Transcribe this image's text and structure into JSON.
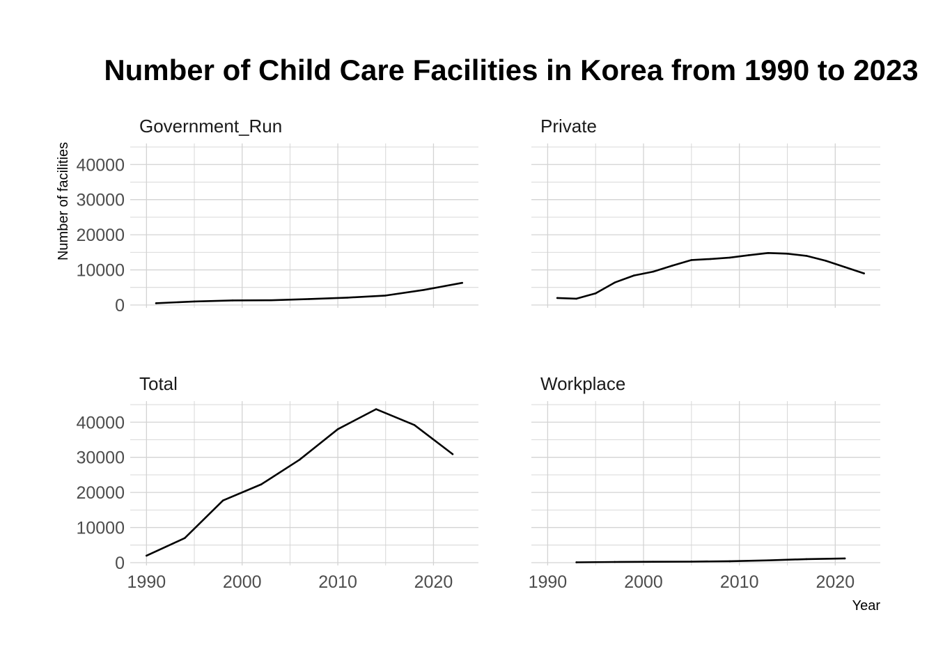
{
  "chart_data": {
    "type": "line",
    "title": "Number of Child Care Facilities in Korea from 1990 to 2023",
    "xlabel": "Year",
    "ylabel": "Number of facilities",
    "xlim": [
      1988.3,
      2024.7
    ],
    "ylim": [
      -800,
      46000
    ],
    "x_ticks": [
      1990,
      2000,
      2010,
      2020
    ],
    "y_ticks": [
      0,
      10000,
      20000,
      30000,
      40000
    ],
    "grid": true,
    "line_color": "#000000",
    "grid_color": "#d3d3d3",
    "facets": [
      {
        "name": "Government_Run",
        "series": [
          {
            "x": 1991,
            "y": 500
          },
          {
            "x": 1995,
            "y": 1000
          },
          {
            "x": 1999,
            "y": 1300
          },
          {
            "x": 2003,
            "y": 1350
          },
          {
            "x": 2007,
            "y": 1700
          },
          {
            "x": 2011,
            "y": 2100
          },
          {
            "x": 2015,
            "y": 2700
          },
          {
            "x": 2019,
            "y": 4300
          },
          {
            "x": 2023,
            "y": 6300
          }
        ]
      },
      {
        "name": "Private",
        "series": [
          {
            "x": 1991,
            "y": 2000
          },
          {
            "x": 1993,
            "y": 1800
          },
          {
            "x": 1995,
            "y": 3300
          },
          {
            "x": 1997,
            "y": 6400
          },
          {
            "x": 1999,
            "y": 8400
          },
          {
            "x": 2001,
            "y": 9500
          },
          {
            "x": 2003,
            "y": 11200
          },
          {
            "x": 2005,
            "y": 12800
          },
          {
            "x": 2007,
            "y": 13100
          },
          {
            "x": 2009,
            "y": 13500
          },
          {
            "x": 2011,
            "y": 14200
          },
          {
            "x": 2013,
            "y": 14800
          },
          {
            "x": 2015,
            "y": 14600
          },
          {
            "x": 2017,
            "y": 14000
          },
          {
            "x": 2019,
            "y": 12600
          },
          {
            "x": 2021,
            "y": 10800
          },
          {
            "x": 2023,
            "y": 9000
          }
        ]
      },
      {
        "name": "Total",
        "series": [
          {
            "x": 1990,
            "y": 2000
          },
          {
            "x": 1994,
            "y": 7000
          },
          {
            "x": 1998,
            "y": 17700
          },
          {
            "x": 2002,
            "y": 22300
          },
          {
            "x": 2006,
            "y": 29300
          },
          {
            "x": 2010,
            "y": 38000
          },
          {
            "x": 2014,
            "y": 43700
          },
          {
            "x": 2018,
            "y": 39200
          },
          {
            "x": 2022,
            "y": 30900
          }
        ]
      },
      {
        "name": "Workplace",
        "series": [
          {
            "x": 1993,
            "y": 100
          },
          {
            "x": 1997,
            "y": 200
          },
          {
            "x": 2001,
            "y": 250
          },
          {
            "x": 2005,
            "y": 300
          },
          {
            "x": 2009,
            "y": 400
          },
          {
            "x": 2013,
            "y": 650
          },
          {
            "x": 2017,
            "y": 1000
          },
          {
            "x": 2021,
            "y": 1200
          }
        ]
      }
    ]
  }
}
